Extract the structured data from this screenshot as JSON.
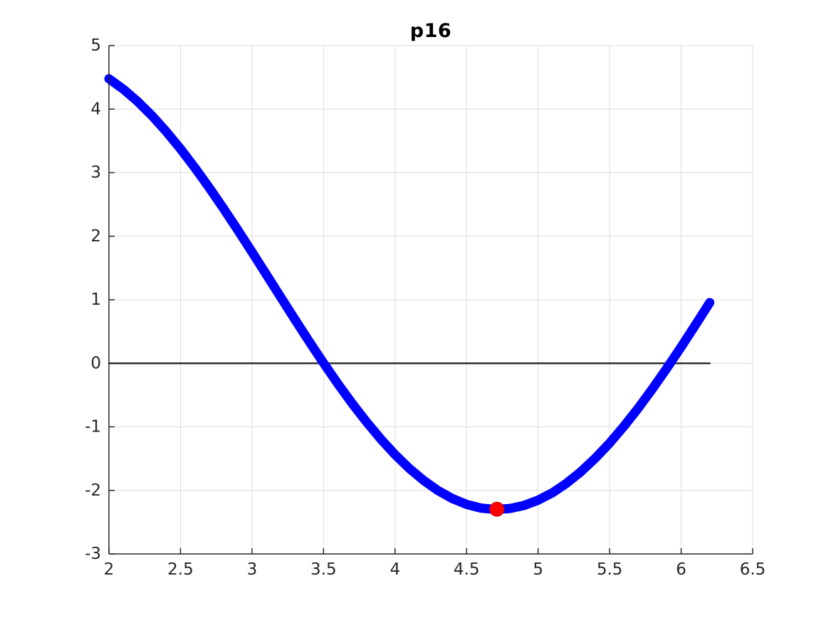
{
  "chart_data": {
    "type": "line",
    "title": "p16",
    "xlabel": "",
    "ylabel": "",
    "xlim": [
      2,
      6.5
    ],
    "ylim": [
      -3,
      5
    ],
    "xticks": [
      2,
      2.5,
      3,
      3.5,
      4,
      4.5,
      5,
      5.5,
      6,
      6.5
    ],
    "xtick_labels": [
      "2",
      "2.5",
      "3",
      "3.5",
      "4",
      "4.5",
      "5",
      "5.5",
      "6",
      "6.5"
    ],
    "yticks": [
      -3,
      -2,
      -1,
      0,
      1,
      2,
      3,
      4,
      5
    ],
    "ytick_labels": [
      "-3",
      "-2",
      "-1",
      "0",
      "1",
      "2",
      "3",
      "4",
      "5"
    ],
    "grid": true,
    "legend": null,
    "series": [
      {
        "name": "zero-line",
        "kind": "line",
        "color": "#2e2e2e",
        "width": 2.5,
        "x": [
          2,
          6.2
        ],
        "y": [
          0,
          0
        ]
      },
      {
        "name": "function-curve",
        "kind": "line",
        "color": "#0000ff",
        "width": 13,
        "x": [
          2.0,
          2.1,
          2.2,
          2.3,
          2.4,
          2.5,
          2.6,
          2.7,
          2.8,
          2.9,
          3.0,
          3.1,
          3.2,
          3.3,
          3.4,
          3.5,
          3.6,
          3.7,
          3.8,
          3.9,
          4.0,
          4.1,
          4.2,
          4.3,
          4.4,
          4.5,
          4.6,
          4.7,
          4.8,
          4.9,
          5.0,
          5.1,
          5.2,
          5.3,
          5.4,
          5.5,
          5.6,
          5.7,
          5.8,
          5.9,
          6.0,
          6.1,
          6.2
        ],
        "y": [
          4.478,
          4.314,
          4.12,
          3.897,
          3.648,
          3.375,
          3.08,
          2.767,
          2.439,
          2.099,
          1.751,
          1.398,
          1.043,
          0.69,
          0.343,
          0.005,
          -0.321,
          -0.631,
          -0.922,
          -1.192,
          -1.437,
          -1.655,
          -1.844,
          -2.002,
          -2.128,
          -2.22,
          -2.278,
          -2.3,
          -2.286,
          -2.238,
          -2.154,
          -2.037,
          -1.886,
          -1.705,
          -1.493,
          -1.255,
          -0.991,
          -0.705,
          -0.399,
          -0.077,
          0.258,
          0.603,
          0.955
        ]
      }
    ],
    "markers": [
      {
        "name": "minimum-marker",
        "x": 4.712,
        "y": -2.297,
        "color": "#ff0000",
        "edge_color": "#d40000",
        "radius": 10
      }
    ],
    "colors": {
      "grid": "#dcdcdc",
      "axis": "#262626",
      "tick_label": "#262626",
      "title": "#000000",
      "background": "#ffffff"
    }
  }
}
